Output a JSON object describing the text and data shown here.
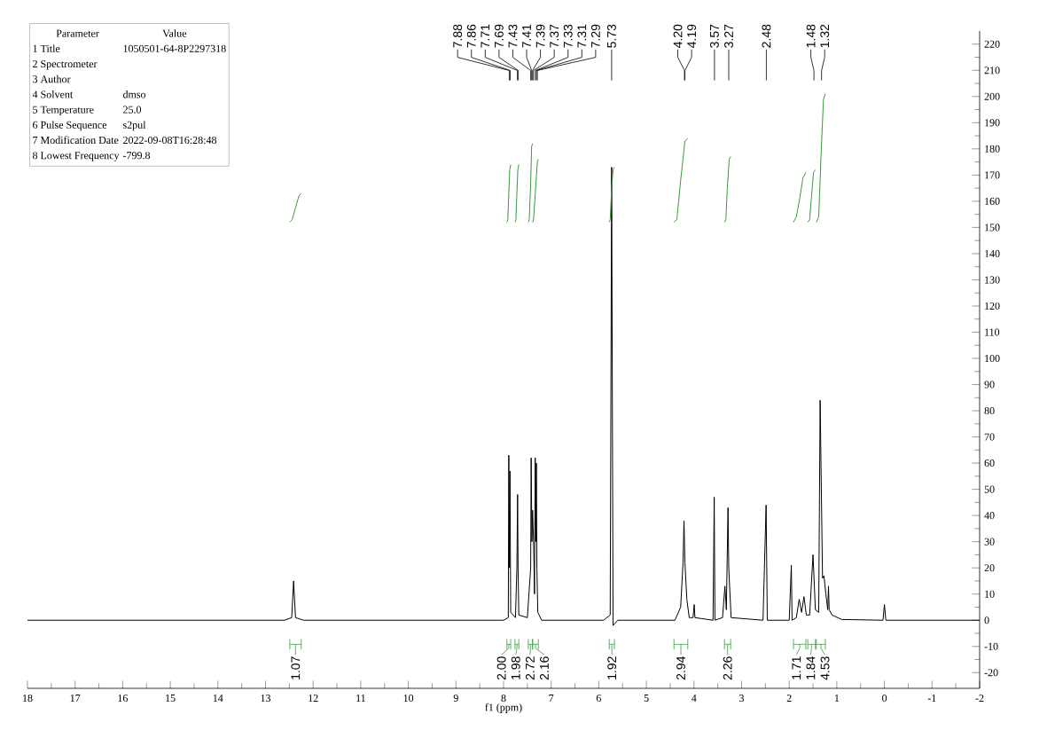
{
  "chart_data": {
    "type": "line",
    "xlabel": "f1 (ppm)",
    "xlim": [
      18,
      -2
    ],
    "ylim": [
      -26,
      225
    ],
    "xticks": [
      18,
      17,
      16,
      15,
      14,
      13,
      12,
      11,
      10,
      9,
      8,
      7,
      6,
      5,
      4,
      3,
      2,
      1,
      0,
      -1,
      -2
    ],
    "yticks": [
      -20,
      -10,
      0,
      10,
      20,
      30,
      40,
      50,
      60,
      70,
      80,
      90,
      100,
      110,
      120,
      130,
      140,
      150,
      160,
      170,
      180,
      190,
      200,
      210,
      220
    ],
    "series": [
      {
        "color": "#000000",
        "x": [
          18,
          12.6,
          12.45,
          12.41,
          12.37,
          12.2,
          8.0,
          7.9,
          7.89,
          7.875,
          7.865,
          7.85,
          7.75,
          7.72,
          7.705,
          7.695,
          7.68,
          7.5,
          7.43,
          7.42,
          7.405,
          7.39,
          7.37,
          7.35,
          7.335,
          7.325,
          7.31,
          7.3,
          7.28,
          7.2,
          5.9,
          5.76,
          5.73,
          5.7,
          5.6,
          4.4,
          4.28,
          4.23,
          4.21,
          4.19,
          4.15,
          4.1,
          4.02,
          3.995,
          3.98,
          3.6,
          3.575,
          3.56,
          3.4,
          3.35,
          3.32,
          3.285,
          3.27,
          3.22,
          2.55,
          2.485,
          2.46,
          2.0,
          1.955,
          1.94,
          1.85,
          1.79,
          1.74,
          1.69,
          1.64,
          1.57,
          1.5,
          1.45,
          1.38,
          1.35,
          1.3,
          1.27,
          1.23,
          1.19,
          1.175,
          1.16,
          1.1,
          0.9,
          0.03,
          0.0,
          -0.03,
          -2
        ],
        "values": [
          0,
          0,
          1,
          15,
          1,
          0,
          0,
          1,
          63,
          20,
          57,
          3,
          1,
          20,
          48,
          20,
          2,
          1,
          20,
          62,
          30,
          42,
          30,
          10,
          62,
          30,
          60,
          20,
          3,
          0,
          0,
          2,
          173,
          -2,
          0,
          0,
          5,
          22,
          38,
          22,
          8,
          1,
          1,
          6,
          1,
          0,
          47,
          0,
          1,
          13,
          4,
          43,
          20,
          1,
          0,
          44,
          0,
          0,
          21,
          0,
          1,
          8,
          3,
          9,
          2,
          2,
          25,
          4,
          3,
          84,
          16,
          17,
          10,
          4,
          13,
          4,
          2,
          0.3,
          0,
          6,
          0,
          0
        ]
      },
      {
        "color": "#3a9a3a",
        "x": [
          12.49,
          12.44,
          12.37,
          12.3,
          12.25
        ],
        "values": [
          152,
          153,
          157.5,
          162,
          163
        ]
      },
      {
        "color": "#3a9a3a",
        "x": [
          7.93,
          7.91,
          7.89,
          7.87,
          7.85
        ],
        "values": [
          152,
          153,
          163,
          172,
          174
        ]
      },
      {
        "color": "#3a9a3a",
        "x": [
          7.76,
          7.74,
          7.72,
          7.7,
          7.68
        ],
        "values": [
          152,
          153,
          163,
          172,
          174
        ]
      },
      {
        "color": "#3a9a3a",
        "x": [
          7.48,
          7.46,
          7.43,
          7.41,
          7.39
        ],
        "values": [
          152,
          153,
          167,
          181,
          182
        ]
      },
      {
        "color": "#3a9a3a",
        "x": [
          7.39,
          7.37,
          7.33,
          7.29,
          7.27
        ],
        "values": [
          152,
          153,
          164,
          175,
          176
        ]
      },
      {
        "color": "#3a9a3a",
        "x": [
          5.78,
          5.76,
          5.73,
          5.7,
          5.67
        ],
        "values": [
          152,
          153,
          165,
          172,
          173
        ]
      },
      {
        "color": "#3a9a3a",
        "x": [
          4.42,
          4.36,
          4.28,
          4.19,
          4.13
        ],
        "values": [
          152,
          153,
          168,
          183,
          184
        ]
      },
      {
        "color": "#3a9a3a",
        "x": [
          3.36,
          3.33,
          3.3,
          3.26,
          3.23
        ],
        "values": [
          152,
          153,
          165,
          176,
          177
        ]
      },
      {
        "color": "#3a9a3a",
        "x": [
          1.91,
          1.85,
          1.78,
          1.71,
          1.65
        ],
        "values": [
          152,
          154,
          161,
          169,
          171
        ]
      },
      {
        "color": "#3a9a3a",
        "x": [
          1.61,
          1.57,
          1.53,
          1.49,
          1.45
        ],
        "values": [
          152,
          153,
          162,
          171,
          172
        ]
      },
      {
        "color": "#3a9a3a",
        "x": [
          1.43,
          1.38,
          1.33,
          1.28,
          1.24
        ],
        "values": [
          152,
          154,
          178,
          199,
          201
        ]
      }
    ],
    "annotations": [
      "Parameter",
      "Value",
      "1 Title",
      "1050501-64-8P2297318",
      "2 Spectrometer",
      "3 Author",
      "4 Solvent",
      "dmso",
      "5 Temperature",
      "25.0",
      "6 Pulse Sequence",
      "s2pul",
      "7 Modification Date",
      "2022-09-08T16:28:48",
      "8 Lowest Frequency",
      "-799.8",
      {
        "text": "7.88",
        "x": 7.88
      },
      {
        "text": "7.86",
        "x": 7.86
      },
      {
        "text": "7.71",
        "x": 7.71
      },
      {
        "text": "7.69",
        "x": 7.69
      },
      {
        "text": "7.43",
        "x": 7.43
      },
      {
        "text": "7.41",
        "x": 7.41
      },
      {
        "text": "7.39",
        "x": 7.39
      },
      {
        "text": "7.37",
        "x": 7.37
      },
      {
        "text": "7.33",
        "x": 7.33
      },
      {
        "text": "7.31",
        "x": 7.31
      },
      {
        "text": "7.29",
        "x": 7.29
      },
      {
        "text": "5.73",
        "x": 5.73
      },
      {
        "text": "4.20",
        "x": 4.2
      },
      {
        "text": "4.19",
        "x": 4.19
      },
      {
        "text": "3.57",
        "x": 3.57
      },
      {
        "text": "3.27",
        "x": 3.27
      },
      {
        "text": "2.48",
        "x": 2.48
      },
      {
        "text": "1.48",
        "x": 1.48
      },
      {
        "text": "1.32",
        "x": 1.32
      },
      "1.07",
      "2.00",
      "1.98",
      "2.72",
      "2.16",
      "1.92",
      "2.94",
      "2.26",
      "1.71",
      "1.84",
      "4.53"
    ]
  }
}
